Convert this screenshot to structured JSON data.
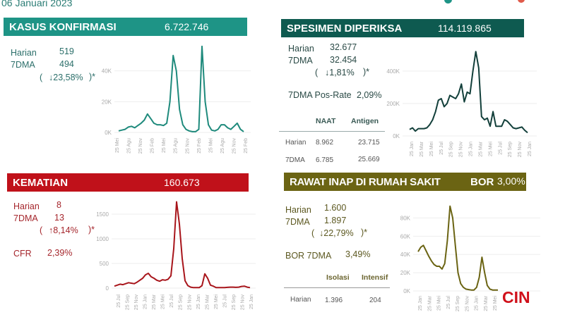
{
  "date": "06 Januari 2023",
  "panels": {
    "kasus": {
      "title": "KASUS KONFIRMASI",
      "total": "6.722.746",
      "harian_label": "Harian",
      "harian": "519",
      "dma_label": "7DMA",
      "dma": "494",
      "change_open": "(",
      "change": "↓23,58%",
      "change_close": ")*"
    },
    "spesimen": {
      "title": "SPESIMEN  DIPERIKSA",
      "total": "114.119.865",
      "harian_label": "Harian",
      "harian": "32.677",
      "dma_label": "7DMA",
      "dma": "32.454",
      "change_open": "(",
      "change": "↓1,81%",
      "change_close": ")*",
      "posrate_label": "7DMA Pos-Rate",
      "posrate": "2,09%",
      "table": {
        "headers": [
          "NAAT",
          "Antigen"
        ],
        "rows": [
          {
            "label": "Harian",
            "values": [
              "8.962",
              "23.715"
            ]
          },
          {
            "label": "7DMA",
            "values": [
              "6.785",
              "25.669"
            ]
          }
        ]
      }
    },
    "kematian": {
      "title": "KEMATIAN",
      "total": "160.673",
      "harian_label": "Harian",
      "harian": "8",
      "dma_label": "7DMA",
      "dma": "13",
      "change_open": "(",
      "change": "↑8,14%",
      "change_close": ")*",
      "cfr_label": "CFR",
      "cfr": "2,39%"
    },
    "rawat": {
      "title": "RAWAT INAP  DI RUMAH  SAKIT",
      "bor_label": "BOR",
      "bor": "3,00%",
      "harian_label": "Harian",
      "harian": "1.600",
      "dma_label": "7DMA",
      "dma": "1.897",
      "change_open": "(",
      "change": "↓22,79%",
      "change_close": ")*",
      "bor7_label": "BOR 7DMA",
      "bor7": "3,49%",
      "table": {
        "headers": [
          "Isolasi",
          "Intensif"
        ],
        "rows": [
          {
            "label": "Harian",
            "values": [
              "1.396",
              "204"
            ]
          }
        ]
      }
    }
  },
  "logo": "CIN",
  "colors": {
    "teal": "#1e9486",
    "dark_teal": "#0e5a50",
    "red": "#c0111a",
    "olive": "#6b6413"
  },
  "chart_data": [
    {
      "type": "line",
      "title": "Kasus Konfirmasi",
      "ylim": [
        0,
        60
      ],
      "yticks": [
        0,
        20,
        40
      ],
      "ytick_labels": [
        "0K",
        "20K",
        "40K"
      ],
      "xtick_labels": [
        "25 Mei",
        "25 Agu",
        "25 Nov",
        "25 Feb",
        "25 Mei",
        "25 Agu",
        "25 Nov",
        "25 Feb",
        "25 Mei",
        "25 Agu",
        "25 Nov",
        "25 Feb"
      ],
      "values": [
        1,
        1.5,
        2,
        3.5,
        4,
        3,
        4.5,
        6,
        8,
        12,
        9,
        6,
        5,
        5,
        4.5,
        6,
        20,
        50,
        40,
        15,
        5,
        2,
        1,
        0.5,
        0.5,
        2,
        56,
        20,
        5,
        1.5,
        1,
        2,
        5,
        5,
        3,
        2,
        4,
        6,
        2,
        0.5
      ],
      "color": "#1e8a7c"
    },
    {
      "type": "line",
      "title": "Spesimen Diperiksa",
      "ylim": [
        0,
        560
      ],
      "yticks": [
        0,
        200,
        400
      ],
      "ytick_labels": [
        "0K",
        "200K",
        "400K"
      ],
      "xtick_labels": [
        "25 Jan",
        "25 Mar",
        "25 Mei",
        "25 Jul",
        "25 Sep",
        "25 Nov",
        "25 Jan",
        "25 Mar",
        "25 Mei",
        "25 Jul",
        "25 Sep",
        "25 Nov",
        "25 Jan"
      ],
      "values": [
        40,
        50,
        30,
        45,
        45,
        45,
        50,
        70,
        100,
        150,
        220,
        230,
        180,
        200,
        250,
        240,
        230,
        260,
        320,
        210,
        270,
        260,
        400,
        520,
        420,
        120,
        100,
        110,
        60,
        150,
        60,
        60,
        60,
        100,
        90,
        70,
        50,
        45,
        50,
        55,
        35,
        20
      ],
      "color": "#123f3a"
    },
    {
      "type": "line",
      "title": "Kematian",
      "ylim": [
        0,
        1800
      ],
      "yticks": [
        0,
        500,
        1000,
        1500
      ],
      "ytick_labels": [
        "0",
        "500",
        "1000",
        "1500"
      ],
      "xtick_labels": [
        "25 Jul",
        "25 Sep",
        "25 Nov",
        "25 Jan",
        "25 Mar",
        "25 Mei",
        "25 Jul",
        "25 Sep",
        "25 Nov",
        "25 Jan",
        "25 Mar",
        "25 Mei",
        "25 Jul",
        "25 Sep",
        "25 Nov",
        "25 Jan"
      ],
      "values": [
        40,
        60,
        80,
        70,
        90,
        110,
        100,
        90,
        120,
        160,
        200,
        270,
        300,
        230,
        200,
        160,
        140,
        170,
        160,
        180,
        250,
        800,
        1750,
        1300,
        600,
        150,
        50,
        20,
        10,
        10,
        10,
        50,
        290,
        200,
        60,
        40,
        10,
        10,
        10,
        10,
        15,
        20,
        20,
        15,
        20,
        35,
        40,
        20,
        10
      ],
      "color": "#a8151b"
    },
    {
      "type": "line",
      "title": "Rawat Inap di Rumah Sakit",
      "ylim": [
        0,
        95
      ],
      "yticks": [
        0,
        20,
        40,
        60,
        80
      ],
      "ytick_labels": [
        "0K",
        "20K",
        "40K",
        "60K",
        "80K"
      ],
      "xtick_labels": [
        "25 Jan",
        "25 Mar",
        "25 Mei",
        "25 Jul",
        "25 Sep",
        "25 Nov",
        "25 Jan",
        "25 Mar",
        "25 Mei"
      ],
      "values": [
        43,
        48,
        50,
        44,
        38,
        33,
        29,
        27,
        27,
        24,
        30,
        55,
        93,
        80,
        50,
        20,
        8,
        4,
        2,
        1.5,
        1,
        1,
        4,
        15,
        37,
        20,
        6,
        2,
        1,
        1,
        1
      ],
      "color": "#6b6413"
    }
  ]
}
